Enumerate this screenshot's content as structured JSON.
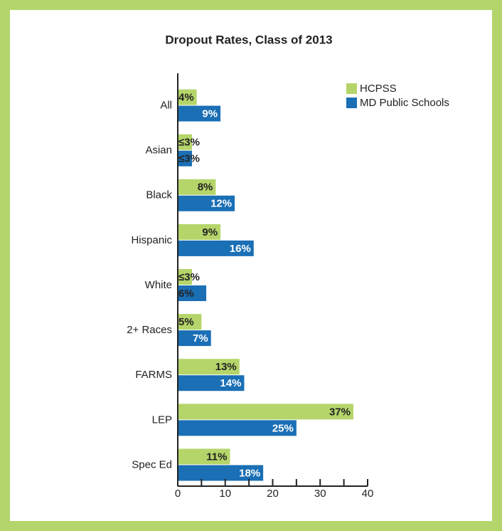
{
  "chart_data": {
    "type": "hbar_grouped",
    "title": "Dropout Rates, Class of 2013",
    "categories": [
      "All",
      "Asian",
      "Black",
      "Hispanic",
      "White",
      "2+  Races",
      "FARMS",
      "LEP",
      "Spec Ed"
    ],
    "series": [
      {
        "name": "HCPSS",
        "color": "#b5d56a",
        "values": [
          4,
          3,
          8,
          9,
          3,
          5,
          13,
          37,
          11
        ],
        "value_labels": [
          "4%",
          "≤3%",
          "8%",
          "9%",
          "≤3%",
          "5%",
          "13%",
          "37%",
          "11%"
        ]
      },
      {
        "name": "MD Public Schools",
        "color": "#1a6fb5",
        "values": [
          9,
          3,
          12,
          16,
          6,
          7,
          14,
          25,
          18
        ],
        "value_labels": [
          "9%",
          "≤3%",
          "12%",
          "16%",
          "6%",
          "7%",
          "14%",
          "25%",
          "18%"
        ]
      }
    ],
    "xlim": [
      0,
      40
    ],
    "xticks": [
      0,
      10,
      20,
      30,
      40
    ],
    "xminorticks": [
      5,
      15,
      25,
      35
    ],
    "legend": "upper right"
  }
}
